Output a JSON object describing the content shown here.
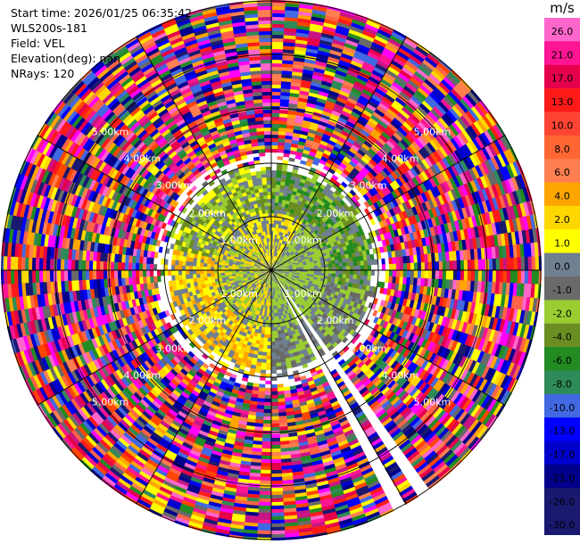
{
  "info": {
    "start_time": "Start time: 2026/01/25 06:35:42",
    "instrument": "WLS200s-181",
    "field": "Field: VEL",
    "elevation": "Elevation(deg): nan",
    "nrays": "NRays: 120"
  },
  "colorbar": {
    "unit": "m/s",
    "labels": [
      "26.0",
      "21.0",
      "17.0",
      "13.0",
      "10.0",
      "8.0",
      "6.0",
      "4.0",
      "2.0",
      "1.0",
      "0.0",
      "-1.0",
      "-2.0",
      "-4.0",
      "-6.0",
      "-8.0",
      "-10.0",
      "-13.0",
      "-17.0",
      "-21.0",
      "-26.0",
      "-30.0"
    ],
    "colors": [
      "#ff66cc",
      "#ff1493",
      "#e6004c",
      "#ff1a1a",
      "#ff4433",
      "#ff6633",
      "#ff7f50",
      "#ffa500",
      "#ffd700",
      "#ffff00",
      "#708090",
      "#696969",
      "#9acd32",
      "#6b8e23",
      "#228b22",
      "#2e8b57",
      "#4169e1",
      "#0000ff",
      "#0000cd",
      "#00008b",
      "#191970",
      "#191970"
    ]
  },
  "range_rings": {
    "labels": [
      "1.00km",
      "2.00km",
      "3.00km",
      "4.00km",
      "5.00km"
    ]
  }
}
